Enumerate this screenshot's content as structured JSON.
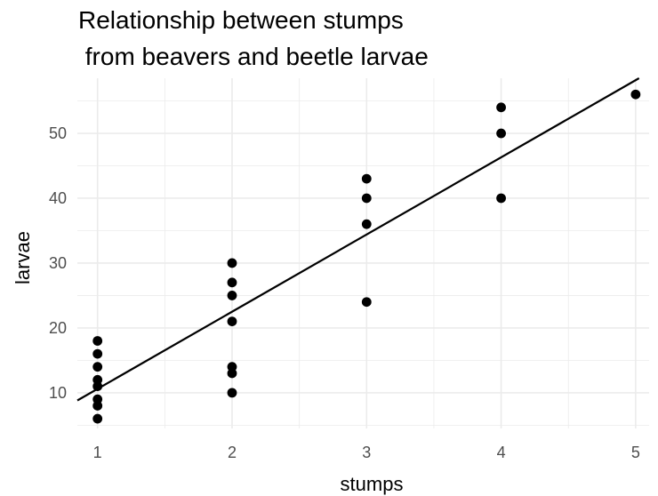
{
  "chart_data": {
    "type": "scatter",
    "title_lines": [
      "Relationship between stumps",
      " from beavers and beetle larvae"
    ],
    "xlabel": "stumps",
    "ylabel": "larvae",
    "xlim": [
      0.85,
      5.1
    ],
    "ylim": [
      4.5,
      58.5
    ],
    "x_ticks": [
      1,
      2,
      3,
      4,
      5
    ],
    "y_ticks": [
      10,
      20,
      30,
      40,
      50
    ],
    "grid": true,
    "legend": "none",
    "points": [
      {
        "x": 1,
        "y": 6
      },
      {
        "x": 1,
        "y": 8
      },
      {
        "x": 1,
        "y": 9
      },
      {
        "x": 1,
        "y": 11
      },
      {
        "x": 1,
        "y": 12
      },
      {
        "x": 1,
        "y": 14
      },
      {
        "x": 1,
        "y": 16
      },
      {
        "x": 1,
        "y": 18
      },
      {
        "x": 2,
        "y": 10
      },
      {
        "x": 2,
        "y": 13
      },
      {
        "x": 2,
        "y": 14
      },
      {
        "x": 2,
        "y": 21
      },
      {
        "x": 2,
        "y": 25
      },
      {
        "x": 2,
        "y": 27
      },
      {
        "x": 2,
        "y": 30
      },
      {
        "x": 3,
        "y": 24
      },
      {
        "x": 3,
        "y": 36
      },
      {
        "x": 3,
        "y": 40
      },
      {
        "x": 3,
        "y": 43
      },
      {
        "x": 4,
        "y": 40
      },
      {
        "x": 4,
        "y": 50
      },
      {
        "x": 4,
        "y": 54
      },
      {
        "x": 5,
        "y": 56
      }
    ],
    "trend_line": {
      "intercept": -1.3,
      "slope": 11.9
    },
    "colors": {
      "points": "#000000",
      "trend_line": "#000000",
      "grid": "#ebebeb"
    }
  }
}
